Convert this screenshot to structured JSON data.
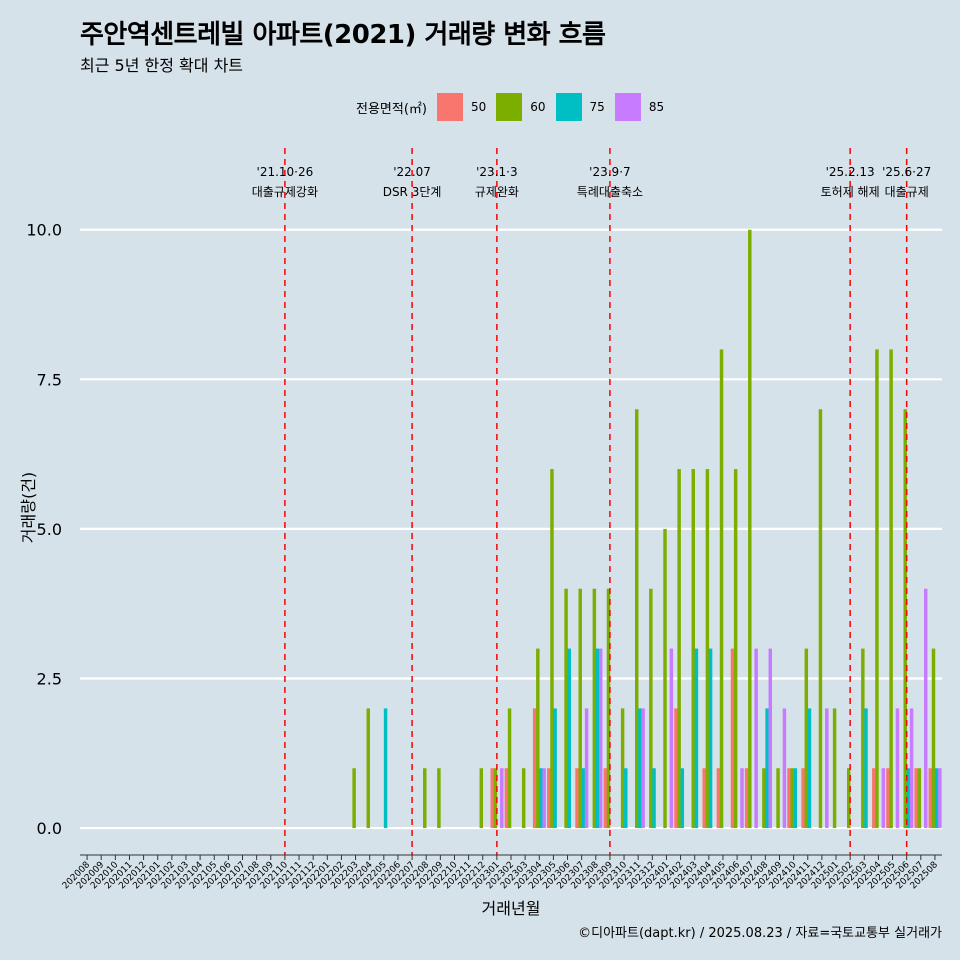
{
  "title": "주안역센트레빌 아파트(2021) 거래량 변화 흐름",
  "subtitle": "최근 5년 한정 확대 차트",
  "caption": "©디아파트(dapt.kr) / 2025.08.23 / 자료=국토교통부 실거래가",
  "legend": {
    "title": "전용면적(㎡)",
    "items": [
      {
        "label": "50",
        "color": "#F8766D"
      },
      {
        "label": "60",
        "color": "#7CAE00"
      },
      {
        "label": "75",
        "color": "#00BFC4"
      },
      {
        "label": "85",
        "color": "#C77CFF"
      }
    ]
  },
  "chart_data": {
    "type": "bar",
    "title": "주안역센트레빌 아파트(2021) 거래량 변화 흐름",
    "xlabel": "거래년월",
    "ylabel": "거래량(건)",
    "ylim": [
      -0.45,
      11.5
    ],
    "yticks": [
      0.0,
      2.5,
      5.0,
      7.5,
      10.0
    ],
    "ytick_labels": [
      "0.0",
      "2.5",
      "5.0",
      "7.5",
      "10.0"
    ],
    "grid": true,
    "categories": [
      "202008",
      "202009",
      "202010",
      "202011",
      "202012",
      "202101",
      "202102",
      "202103",
      "202104",
      "202105",
      "202106",
      "202107",
      "202108",
      "202109",
      "202110",
      "202111",
      "202112",
      "202201",
      "202202",
      "202203",
      "202204",
      "202205",
      "202206",
      "202207",
      "202208",
      "202209",
      "202210",
      "202211",
      "202212",
      "202301",
      "202302",
      "202303",
      "202304",
      "202305",
      "202306",
      "202307",
      "202308",
      "202309",
      "202310",
      "202311",
      "202312",
      "202401",
      "202402",
      "202403",
      "202404",
      "202405",
      "202406",
      "202407",
      "202408",
      "202409",
      "202410",
      "202411",
      "202412",
      "202501",
      "202502",
      "202503",
      "202504",
      "202505",
      "202506",
      "202507",
      "202508"
    ],
    "series": [
      {
        "name": "50",
        "color": "#F8766D",
        "values": [
          0,
          0,
          0,
          0,
          0,
          0,
          0,
          0,
          0,
          0,
          0,
          0,
          0,
          0,
          0,
          0,
          0,
          0,
          0,
          0,
          0,
          0,
          0,
          0,
          0,
          0,
          0,
          0,
          0,
          1,
          1,
          0,
          2,
          1,
          0,
          1,
          0,
          1,
          0,
          0,
          0,
          0,
          2,
          0,
          1,
          1,
          3,
          1,
          0,
          0,
          1,
          1,
          0,
          0,
          0,
          0,
          1,
          1,
          0,
          1,
          1
        ]
      },
      {
        "name": "60",
        "color": "#7CAE00",
        "values": [
          0,
          0,
          0,
          0,
          0,
          0,
          0,
          0,
          0,
          0,
          0,
          0,
          0,
          0,
          0,
          0,
          0,
          0,
          0,
          1,
          2,
          0,
          0,
          0,
          1,
          1,
          0,
          0,
          1,
          1,
          2,
          1,
          3,
          6,
          4,
          4,
          4,
          4,
          2,
          7,
          4,
          5,
          6,
          6,
          6,
          8,
          6,
          10,
          1,
          1,
          1,
          3,
          7,
          2,
          1,
          3,
          8,
          8,
          7,
          1,
          3
        ]
      },
      {
        "name": "75",
        "color": "#00BFC4",
        "values": [
          0,
          0,
          0,
          0,
          0,
          0,
          0,
          0,
          0,
          0,
          0,
          0,
          0,
          0,
          0,
          0,
          0,
          0,
          0,
          0,
          0,
          2,
          0,
          0,
          0,
          0,
          0,
          0,
          0,
          0,
          0,
          0,
          1,
          2,
          3,
          1,
          3,
          0,
          1,
          2,
          1,
          0,
          1,
          3,
          3,
          0,
          0,
          0,
          2,
          0,
          1,
          2,
          0,
          0,
          0,
          2,
          0,
          0,
          1,
          0,
          1
        ]
      },
      {
        "name": "85",
        "color": "#C77CFF",
        "values": [
          0,
          0,
          0,
          0,
          0,
          0,
          0,
          0,
          0,
          0,
          0,
          0,
          0,
          0,
          0,
          0,
          0,
          0,
          0,
          0,
          0,
          0,
          0,
          0,
          0,
          0,
          0,
          0,
          0,
          1,
          0,
          0,
          1,
          0,
          0,
          2,
          3,
          0,
          0,
          2,
          0,
          3,
          0,
          0,
          0,
          0,
          1,
          3,
          3,
          2,
          0,
          0,
          2,
          0,
          0,
          0,
          1,
          2,
          2,
          4,
          1
        ]
      }
    ],
    "annotations": [
      {
        "category": "202110",
        "date": "'21.10·26",
        "label": "대출규제강화"
      },
      {
        "category": "202207",
        "date": "'22.07",
        "label": "DSR 3단계"
      },
      {
        "category": "202301",
        "date": "'23.1·3",
        "label": "규제완화"
      },
      {
        "category": "202309",
        "date": "'23.9·7",
        "label": "특례대출축소"
      },
      {
        "category": "202502",
        "date": "'25.2.13",
        "label": "토허제 해제"
      },
      {
        "category": "202506",
        "date": "'25.6·27",
        "label": "대출규제"
      }
    ]
  }
}
